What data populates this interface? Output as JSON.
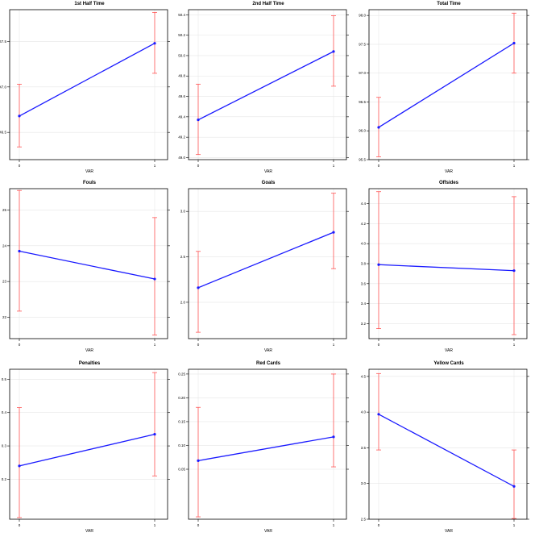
{
  "chart_data": [
    {
      "type": "line",
      "title": "1st Half Time",
      "xlabel": "VAR",
      "ylabel": "",
      "categories": [
        "0",
        "1"
      ],
      "values": [
        46.68,
        47.48
      ],
      "error_low": [
        46.34,
        47.15
      ],
      "error_high": [
        47.03,
        47.82
      ],
      "ylim": [
        46.2,
        47.85
      ],
      "yticks": [
        "46.5",
        "47.0",
        "47.5"
      ],
      "ytick_values": [
        46.5,
        47.0,
        47.5
      ],
      "colors": {
        "line": "#1a1aff",
        "error": "#ff5555",
        "grid": "#e6e6e6"
      }
    },
    {
      "type": "line",
      "title": "2nd Half Time",
      "xlabel": "VAR",
      "ylabel": "",
      "categories": [
        "0",
        "1"
      ],
      "values": [
        49.37,
        50.04
      ],
      "error_low": [
        49.03,
        49.7
      ],
      "error_high": [
        49.72,
        50.39
      ],
      "ylim": [
        48.98,
        50.45
      ],
      "yticks": [
        "49.0",
        "49.2",
        "49.4",
        "49.6",
        "49.8",
        "50.0",
        "50.2",
        "50.4"
      ],
      "ytick_values": [
        49.0,
        49.2,
        49.4,
        49.6,
        49.8,
        50.0,
        50.2,
        50.4
      ],
      "colors": {
        "line": "#1a1aff",
        "error": "#ff5555",
        "grid": "#e6e6e6"
      }
    },
    {
      "type": "line",
      "title": "Total Time",
      "xlabel": "VAR",
      "ylabel": "",
      "categories": [
        "0",
        "1"
      ],
      "values": [
        96.06,
        97.52
      ],
      "error_low": [
        95.55,
        97.0
      ],
      "error_high": [
        96.58,
        98.04
      ],
      "ylim": [
        95.5,
        98.1
      ],
      "yticks": [
        "95.5",
        "96.0",
        "96.5",
        "97.0",
        "97.5",
        "98.0"
      ],
      "ytick_values": [
        95.5,
        96.0,
        96.5,
        97.0,
        97.5,
        98.0
      ],
      "colors": {
        "line": "#1a1aff",
        "error": "#ff5555",
        "grid": "#e6e6e6"
      }
    },
    {
      "type": "line",
      "title": "Fouls",
      "xlabel": "VAR",
      "ylabel": "",
      "categories": [
        "0",
        "1"
      ],
      "values": [
        23.85,
        23.07
      ],
      "error_low": [
        22.17,
        21.5
      ],
      "error_high": [
        25.55,
        24.79
      ],
      "ylim": [
        21.4,
        25.6
      ],
      "yticks": [
        "22",
        "23",
        "24",
        "25"
      ],
      "ytick_values": [
        22,
        23,
        24,
        25
      ],
      "colors": {
        "line": "#1a1aff",
        "error": "#ff5555",
        "grid": "#e6e6e6"
      }
    },
    {
      "type": "line",
      "title": "Goals",
      "xlabel": "VAR",
      "ylabel": "",
      "categories": [
        "0",
        "1"
      ],
      "values": [
        2.16,
        2.77
      ],
      "error_low": [
        1.67,
        2.37
      ],
      "error_high": [
        2.56,
        3.2
      ],
      "ylim": [
        1.6,
        3.25
      ],
      "yticks": [
        "2.0",
        "2.5",
        "3.0"
      ],
      "ytick_values": [
        2.0,
        2.5,
        3.0
      ],
      "colors": {
        "line": "#1a1aff",
        "error": "#ff5555",
        "grid": "#e6e6e6"
      }
    },
    {
      "type": "line",
      "title": "Offsides",
      "xlabel": "VAR",
      "ylabel": "",
      "categories": [
        "0",
        "1"
      ],
      "values": [
        3.79,
        3.73
      ],
      "error_low": [
        3.15,
        3.09
      ],
      "error_high": [
        4.52,
        4.47
      ],
      "ylim": [
        3.05,
        4.55
      ],
      "yticks": [
        "3.2",
        "3.4",
        "3.6",
        "3.8",
        "4.0",
        "4.2",
        "4.4"
      ],
      "ytick_values": [
        3.2,
        3.4,
        3.6,
        3.8,
        4.0,
        4.2,
        4.4
      ],
      "colors": {
        "line": "#1a1aff",
        "error": "#ff5555",
        "grid": "#e6e6e6"
      }
    },
    {
      "type": "line",
      "title": "Penalties",
      "xlabel": "VAR",
      "ylabel": "",
      "categories": [
        "0",
        "1"
      ],
      "values": [
        0.24,
        0.335
      ],
      "error_low": [
        0.085,
        0.21
      ],
      "error_high": [
        0.415,
        0.52
      ],
      "ylim": [
        0.08,
        0.53
      ],
      "yticks": [
        "0.2",
        "0.3",
        "0.4",
        "0.5"
      ],
      "ytick_values": [
        0.2,
        0.3,
        0.4,
        0.5
      ],
      "colors": {
        "line": "#1a1aff",
        "error": "#ff5555",
        "grid": "#e6e6e6"
      }
    },
    {
      "type": "line",
      "title": "Red Cards",
      "xlabel": "VAR",
      "ylabel": "",
      "categories": [
        "0",
        "1"
      ],
      "values": [
        0.068,
        0.118
      ],
      "error_low": [
        -0.05,
        0.055
      ],
      "error_high": [
        0.18,
        0.25
      ],
      "ylim": [
        -0.055,
        0.26
      ],
      "yticks": [
        "0.05",
        "0.10",
        "0.15",
        "0.20",
        "0.25"
      ],
      "ytick_values": [
        0.05,
        0.1,
        0.15,
        0.2,
        0.25
      ],
      "colors": {
        "line": "#1a1aff",
        "error": "#ff5555",
        "grid": "#e6e6e6"
      }
    },
    {
      "type": "line",
      "title": "Yellow Cards",
      "xlabel": "VAR",
      "ylabel": "",
      "categories": [
        "0",
        "1"
      ],
      "values": [
        3.97,
        2.96
      ],
      "error_low": [
        3.47,
        2.51
      ],
      "error_high": [
        4.54,
        3.47
      ],
      "ylim": [
        2.5,
        4.6
      ],
      "yticks": [
        "2.5",
        "3.0",
        "3.5",
        "4.0",
        "4.5"
      ],
      "ytick_values": [
        2.5,
        3.0,
        3.5,
        4.0,
        4.5
      ],
      "colors": {
        "line": "#1a1aff",
        "error": "#ff5555",
        "grid": "#e6e6e6"
      }
    }
  ]
}
